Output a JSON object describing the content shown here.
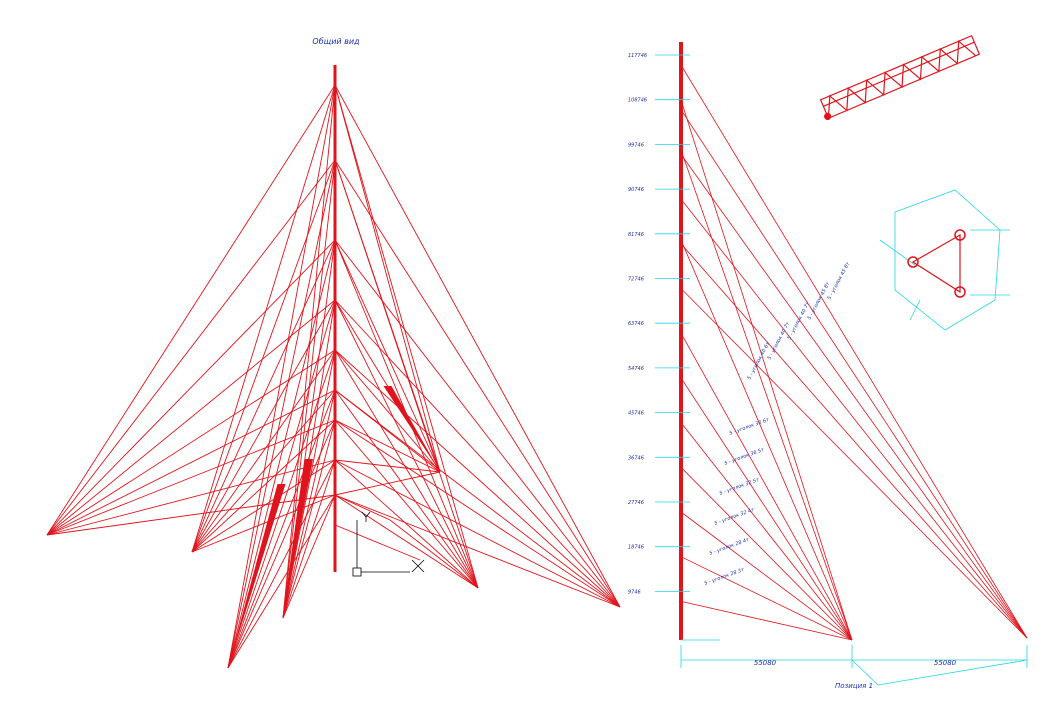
{
  "title": "Общий вид",
  "elevations": [
    "117746",
    "108746",
    "99746",
    "90746",
    "81746",
    "72746",
    "63746",
    "54746",
    "45746",
    "36746",
    "27746",
    "18746",
    "9746"
  ],
  "guy_labels": [
    "5 - уголок 45 8т",
    "5 - уголок 45 8т",
    "5 - уголок 40 7т",
    "5 - уголок 40 7т",
    "5 - уголок 40 6т",
    "5 - уголок 36 6т",
    "5 - уголок 36 5т",
    "5 - уголок 32 5т",
    "5 - уголок 32 4т",
    "5 - уголок 28 4т",
    "5 - уголок 28 3т"
  ],
  "dimensions": [
    "55080",
    "55080"
  ],
  "position_label": "Позиция 1"
}
